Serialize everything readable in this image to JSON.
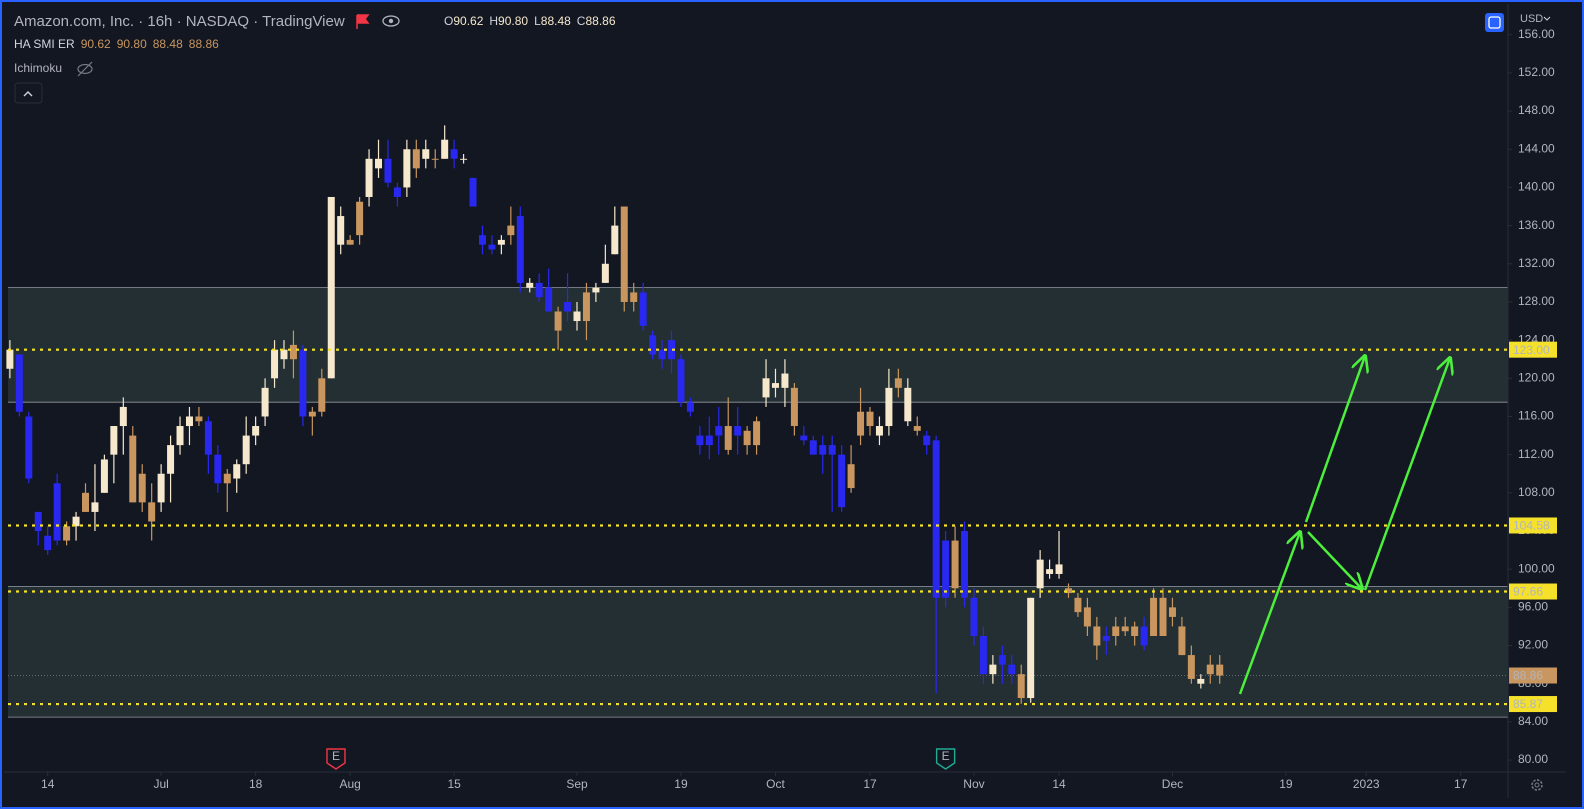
{
  "chart_data": {
    "type": "candlestick",
    "title": "Amazon.com, Inc. · 16h · NASDAQ · TradingView",
    "legend": {
      "labels": [
        "O",
        "H",
        "L",
        "C"
      ],
      "values": [
        "90.62",
        "90.80",
        "88.48",
        "88.86"
      ]
    },
    "indicator": {
      "name": "HA SMI ER",
      "values": [
        "90.62",
        "90.80",
        "88.48",
        "88.86"
      ]
    },
    "overlay": "Ichimoku",
    "currency": "USD",
    "ylim": [
      78.75,
      158.8
    ],
    "yticks": [
      {
        "value": 80,
        "label": "80.00"
      },
      {
        "value": 84,
        "label": "84.00"
      },
      {
        "value": 88,
        "label": "88.00"
      },
      {
        "value": 92,
        "label": "92.00"
      },
      {
        "value": 96,
        "label": "96.00"
      },
      {
        "value": 100,
        "label": "100.00"
      },
      {
        "value": 104,
        "label": "104.00"
      },
      {
        "value": 108,
        "label": "108.00"
      },
      {
        "value": 112,
        "label": "112.00"
      },
      {
        "value": 116,
        "label": "116.00"
      },
      {
        "value": 120,
        "label": "120.00"
      },
      {
        "value": 124,
        "label": "124.00"
      },
      {
        "value": 128,
        "label": "128.00"
      },
      {
        "value": 132,
        "label": "132.00"
      },
      {
        "value": 136,
        "label": "136.00"
      },
      {
        "value": 140,
        "label": "140.00"
      },
      {
        "value": 144,
        "label": "144.00"
      },
      {
        "value": 148,
        "label": "148.00"
      },
      {
        "value": 152,
        "label": "152.00"
      },
      {
        "value": 156,
        "label": "156.00"
      }
    ],
    "xlim": [
      -0.2,
      158.5
    ],
    "xticks": [
      {
        "value": 4,
        "label": "14"
      },
      {
        "value": 16,
        "label": "Jul"
      },
      {
        "value": 26,
        "label": "18"
      },
      {
        "value": 36,
        "label": "Aug"
      },
      {
        "value": 47,
        "label": "15"
      },
      {
        "value": 60,
        "label": "Sep"
      },
      {
        "value": 71,
        "label": "19"
      },
      {
        "value": 81,
        "label": "Oct"
      },
      {
        "value": 91,
        "label": "17"
      },
      {
        "value": 102,
        "label": "Nov"
      },
      {
        "value": 111,
        "label": "14"
      },
      {
        "value": 123,
        "label": "Dec"
      },
      {
        "value": 135,
        "label": "19"
      },
      {
        "value": 143.5,
        "label": "2023"
      },
      {
        "value": 153.5,
        "label": "17"
      }
    ],
    "ohlc": [
      [
        121,
        124,
        120,
        123
      ],
      [
        122.5,
        122.5,
        116,
        116.5
      ],
      [
        116,
        116.5,
        109,
        109.5
      ],
      [
        104,
        106,
        102.5,
        106
      ],
      [
        103.5,
        104.5,
        101.5,
        102
      ],
      [
        109,
        110,
        102.5,
        103
      ],
      [
        103,
        105,
        102.5,
        104.5
      ],
      [
        104.5,
        106,
        103,
        105.5
      ],
      [
        106,
        109,
        106,
        108
      ],
      [
        106,
        111,
        104,
        107
      ],
      [
        108,
        112,
        108,
        111.5
      ],
      [
        112,
        115,
        109,
        115
      ],
      [
        115,
        118,
        112,
        117
      ],
      [
        114,
        115,
        107,
        107
      ],
      [
        110,
        111,
        106,
        107
      ],
      [
        107,
        109,
        103,
        105
      ],
      [
        107,
        111,
        106,
        110
      ],
      [
        110,
        114,
        107,
        113
      ],
      [
        113,
        116,
        112,
        115
      ],
      [
        115,
        117,
        113,
        116
      ],
      [
        116,
        117,
        115,
        115.5
      ],
      [
        115.5,
        116,
        110,
        112
      ],
      [
        112,
        113,
        108,
        109
      ],
      [
        109,
        110.5,
        106,
        110
      ],
      [
        109.5,
        111.5,
        108,
        111
      ],
      [
        111,
        116,
        110,
        114
      ],
      [
        114,
        116,
        113,
        115
      ],
      [
        116,
        120,
        115,
        119
      ],
      [
        120,
        124,
        119,
        123
      ],
      [
        122,
        124,
        121,
        123
      ],
      [
        122,
        125,
        120,
        123.5
      ],
      [
        123,
        123.5,
        115,
        116
      ],
      [
        116,
        117,
        114,
        116.5
      ],
      [
        116.5,
        121,
        116,
        120
      ],
      [
        120,
        139,
        120,
        139
      ],
      [
        137,
        138,
        133,
        134
      ],
      [
        134,
        135,
        134,
        134.5
      ],
      [
        135,
        139,
        134,
        138.5
      ],
      [
        139,
        144,
        138,
        143
      ],
      [
        142,
        145,
        141,
        143
      ],
      [
        143,
        145,
        140,
        140.5
      ],
      [
        140,
        140.5,
        138,
        139
      ],
      [
        140,
        145,
        139,
        144
      ],
      [
        144,
        145,
        141,
        142
      ],
      [
        143,
        145,
        142,
        144
      ],
      [
        143,
        144,
        142,
        143
      ],
      [
        143,
        146.5,
        143,
        145
      ],
      [
        144,
        145,
        142,
        143
      ],
      [
        143,
        143.5,
        142.5,
        143
      ],
      [
        141,
        141,
        138,
        138
      ],
      [
        135,
        136,
        133,
        134
      ],
      [
        134,
        135,
        133,
        133.5
      ],
      [
        134,
        135,
        133,
        134.5
      ],
      [
        135,
        138,
        134,
        136
      ],
      [
        137,
        138,
        129,
        130
      ],
      [
        130,
        130.5,
        129,
        129.5
      ],
      [
        130,
        131,
        128,
        128.5
      ],
      [
        129.5,
        131.5,
        127,
        127
      ],
      [
        127,
        127.5,
        123,
        125
      ],
      [
        128,
        131,
        126,
        127
      ],
      [
        127,
        128,
        125,
        126
      ],
      [
        126,
        130,
        124,
        129
      ],
      [
        129,
        130,
        128,
        129.5
      ],
      [
        130,
        134,
        130,
        132
      ],
      [
        133,
        138,
        133,
        136
      ],
      [
        138,
        138,
        127,
        128
      ],
      [
        128,
        130,
        127,
        129
      ],
      [
        129,
        130,
        125,
        125.5
      ],
      [
        124.5,
        125,
        122,
        122.5
      ],
      [
        123,
        124,
        121,
        122
      ],
      [
        122,
        125,
        120.5,
        124
      ],
      [
        122,
        122.5,
        117,
        117.5
      ],
      [
        117.5,
        118,
        116,
        116.5
      ],
      [
        114,
        115,
        112,
        113
      ],
      [
        113,
        116,
        111.5,
        114
      ],
      [
        114,
        117,
        112,
        115
      ],
      [
        115,
        118,
        112,
        112.5
      ],
      [
        114,
        117,
        112,
        115
      ],
      [
        114.5,
        115,
        112,
        113
      ],
      [
        113,
        116,
        112,
        115.5
      ],
      [
        118,
        122,
        117,
        120
      ],
      [
        119,
        121,
        118,
        119.5
      ],
      [
        119,
        122,
        117,
        120.5
      ],
      [
        119,
        119.5,
        114,
        115
      ],
      [
        114,
        115,
        113,
        113.5
      ],
      [
        113.5,
        114,
        112,
        112
      ],
      [
        112,
        114,
        110,
        113
      ],
      [
        113,
        114,
        106,
        112
      ],
      [
        112,
        113,
        106,
        106.5
      ],
      [
        111,
        113,
        108,
        108.5
      ],
      [
        114,
        119,
        113,
        116.5
      ],
      [
        116.5,
        117,
        114,
        115
      ],
      [
        115,
        116,
        113,
        114
      ],
      [
        115,
        121,
        114,
        119
      ],
      [
        119,
        121,
        118,
        120
      ],
      [
        119,
        120,
        115,
        115.5
      ],
      [
        115,
        116,
        114,
        114.5
      ],
      [
        114,
        114.5,
        112,
        113
      ],
      [
        113.5,
        114,
        87,
        97
      ],
      [
        97,
        104,
        96,
        103
      ],
      [
        103,
        104.5,
        97,
        98
      ],
      [
        104,
        105,
        96,
        97
      ],
      [
        97,
        98,
        92,
        93
      ],
      [
        93,
        94,
        88,
        89
      ],
      [
        89,
        91,
        88,
        90
      ],
      [
        90,
        92,
        88,
        91
      ],
      [
        90,
        91,
        88,
        89
      ],
      [
        89,
        90,
        85.9,
        86.5
      ],
      [
        86.5,
        97,
        86,
        97
      ],
      [
        98,
        102,
        97,
        101
      ],
      [
        100,
        101,
        99,
        99.5
      ],
      [
        99.5,
        104,
        99,
        100.5
      ],
      [
        98,
        98.5,
        97,
        97.5
      ],
      [
        97,
        97.5,
        95,
        95.5
      ],
      [
        96,
        97,
        93,
        94
      ],
      [
        94,
        95,
        90.5,
        92
      ],
      [
        93,
        94,
        91,
        92.5
      ],
      [
        93,
        95,
        92,
        94
      ],
      [
        94,
        95,
        93,
        93.5
      ],
      [
        93,
        94.5,
        92,
        94
      ],
      [
        94,
        95,
        91.5,
        92
      ],
      [
        93,
        98,
        93,
        97
      ],
      [
        97,
        98,
        93,
        93
      ],
      [
        96,
        97,
        94,
        95
      ],
      [
        94,
        95,
        91,
        91
      ],
      [
        91,
        92,
        88,
        88.5
      ],
      [
        88.5,
        89,
        87.5,
        88
      ],
      [
        89,
        91,
        88,
        90
      ],
      [
        90,
        91,
        88,
        88.86
      ]
    ],
    "colors": [
      "#f6e8cc",
      "#2828f0",
      "#2828f0",
      "#2828f0",
      "#2828f0",
      "#2828f0",
      "#c8965e",
      "#f6e8cc",
      "#c8965e",
      "#f6e8cc",
      "#f6e8cc",
      "#f6e8cc",
      "#f6e8cc",
      "#c8965e",
      "#c8965e",
      "#c8965e",
      "#f6e8cc",
      "#f6e8cc",
      "#f6e8cc",
      "#f6e8cc",
      "#c8965e",
      "#2828f0",
      "#2828f0",
      "#c8965e",
      "#f6e8cc",
      "#f6e8cc",
      "#f6e8cc",
      "#f6e8cc",
      "#f6e8cc",
      "#f6e8cc",
      "#c8965e",
      "#2828f0",
      "#c8965e",
      "#c8965e",
      "#f6e8cc",
      "#f6e8cc",
      "#c8965e",
      "#c8965e",
      "#f6e8cc",
      "#f6e8cc",
      "#2828f0",
      "#2828f0",
      "#f6e8cc",
      "#c8965e",
      "#f6e8cc",
      "#c8965e",
      "#f6e8cc",
      "#2828f0",
      "#f6e8cc",
      "#2828f0",
      "#2828f0",
      "#2828f0",
      "#f6e8cc",
      "#c8965e",
      "#2828f0",
      "#f6e8cc",
      "#2828f0",
      "#2828f0",
      "#c8965e",
      "#2828f0",
      "#f6e8cc",
      "#c8965e",
      "#f6e8cc",
      "#f6e8cc",
      "#f6e8cc",
      "#c8965e",
      "#c8965e",
      "#2828f0",
      "#2828f0",
      "#2828f0",
      "#2828f0",
      "#2828f0",
      "#2828f0",
      "#2828f0",
      "#2828f0",
      "#2828f0",
      "#c8965e",
      "#2828f0",
      "#c8965e",
      "#c8965e",
      "#f6e8cc",
      "#f6e8cc",
      "#f6e8cc",
      "#c8965e",
      "#2828f0",
      "#2828f0",
      "#2828f0",
      "#2828f0",
      "#2828f0",
      "#c8965e",
      "#c8965e",
      "#c8965e",
      "#f6e8cc",
      "#f6e8cc",
      "#c8965e",
      "#f6e8cc",
      "#c8965e",
      "#2828f0",
      "#2828f0",
      "#2828f0",
      "#c8965e",
      "#2828f0",
      "#2828f0",
      "#2828f0",
      "#f6e8cc",
      "#2828f0",
      "#2828f0",
      "#c8965e",
      "#f6e8cc",
      "#f6e8cc",
      "#f6e8cc",
      "#f6e8cc",
      "#c8965e",
      "#c8965e",
      "#c8965e",
      "#c8965e",
      "#2828f0",
      "#c8965e",
      "#c8965e",
      "#c8965e",
      "#2828f0",
      "#c8965e",
      "#c8965e",
      "#c8965e",
      "#c8965e",
      "#c8965e",
      "#f6e8cc",
      "#c8965e",
      "#c8965e"
    ],
    "zones": [
      {
        "top": 129.5,
        "bottom": 117.5
      },
      {
        "top": 98.2,
        "bottom": 84.5
      }
    ],
    "levels": [
      {
        "value": 123,
        "label": "123.00"
      },
      {
        "value": 104.58,
        "label": "104.58"
      },
      {
        "value": 97.66,
        "label": "97.66"
      },
      {
        "value": 85.87,
        "label": "85.87"
      }
    ],
    "level_color": "#f5e12a",
    "last_price": {
      "value": 88.86,
      "label": "88.86",
      "color": "#c8965e"
    },
    "events": [
      {
        "x": 34.5,
        "label": "E",
        "color": "#f23645"
      },
      {
        "x": 99,
        "label": "E",
        "color": "#22ab94"
      }
    ]
  }
}
